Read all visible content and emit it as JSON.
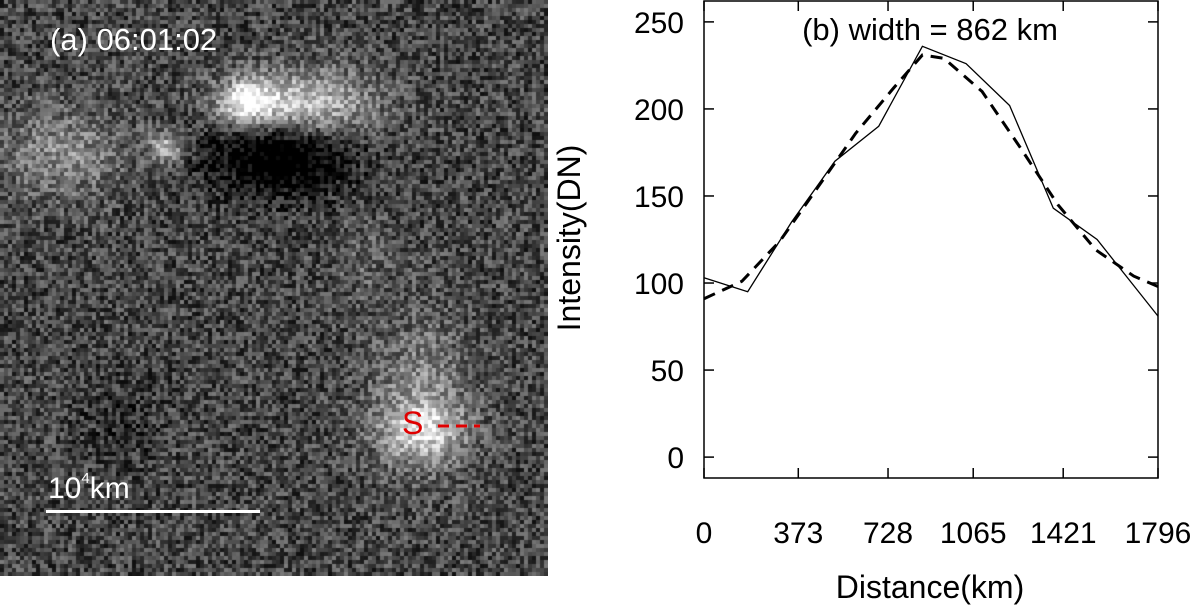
{
  "panel_a": {
    "label": "(a) 06:01:02",
    "slit_label": "S",
    "scale_base": "10",
    "scale_exp": "4",
    "scale_unit": "km",
    "colors": {
      "slit": "#e00000",
      "text": "#ffffff"
    }
  },
  "chart_data": {
    "type": "line",
    "title": "(b) width = 862 km",
    "xlabel": "Distance(km)",
    "ylabel": "Intensity(DN)",
    "xlim": [
      0,
      1796
    ],
    "ylim": [
      -12,
      262
    ],
    "x_ticks": [
      0,
      373,
      728,
      1065,
      1421,
      1796
    ],
    "y_ticks": [
      0,
      50,
      100,
      150,
      200,
      250
    ],
    "grid": false,
    "series": [
      {
        "style": "solid",
        "x": [
          0,
          173,
          346,
          518,
          691,
          864,
          1037,
          1209,
          1382,
          1555,
          1796
        ],
        "y": [
          103,
          95,
          135,
          170,
          190,
          236,
          226,
          202,
          143,
          125,
          81
        ]
      },
      {
        "style": "dashed",
        "x": [
          0,
          150,
          300,
          450,
          600,
          750,
          864,
          950,
          1100,
          1250,
          1400,
          1550,
          1700,
          1796
        ],
        "y": [
          91,
          101,
          124,
          155,
          186,
          212,
          231,
          229,
          210,
          178,
          145,
          119,
          104,
          98
        ]
      }
    ]
  }
}
